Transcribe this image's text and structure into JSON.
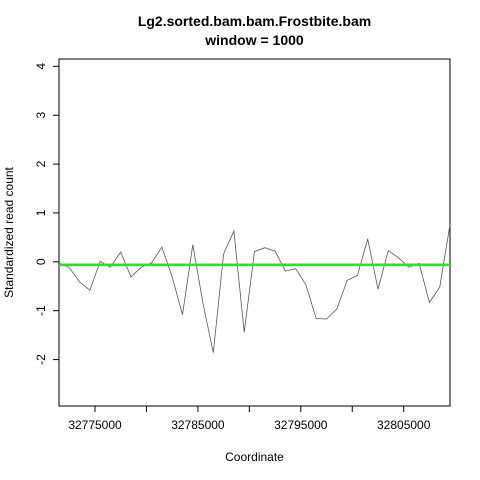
{
  "chart_data": {
    "type": "line",
    "title": "Lg2.sorted.bam.bam.Frostbite.bam",
    "subtitle": "window = 1000",
    "xlabel": "Coordinate",
    "ylabel": "Standardized read count",
    "xlim": [
      32771500,
      32809500
    ],
    "ylim": [
      -2.95,
      4.15
    ],
    "x_ticks": [
      32775000,
      32780000,
      32785000,
      32790000,
      32795000,
      32800000,
      32805000
    ],
    "x_tick_labels": [
      "32775000",
      "",
      "32785000",
      "",
      "32795000",
      "",
      "32805000"
    ],
    "y_ticks": [
      -2,
      -1,
      0,
      1,
      2,
      3,
      4
    ],
    "y_tick_labels": [
      "-2",
      "-1",
      "0",
      "1",
      "2",
      "3",
      "4"
    ],
    "grid": false,
    "series": [
      {
        "color": "#555555",
        "x": [
          32771500,
          32772500,
          32773500,
          32774500,
          32775500,
          32776500,
          32777500,
          32778500,
          32779500,
          32780500,
          32781500,
          32782500,
          32783500,
          32784500,
          32785500,
          32786500,
          32787500,
          32788500,
          32789500,
          32790500,
          32791500,
          32792500,
          32793500,
          32794500,
          32795500,
          32796500,
          32797500,
          32798500,
          32799500,
          32800500,
          32801500,
          32802500,
          32803500,
          32804500,
          32805500,
          32806500,
          32807500,
          32808500,
          32809500
        ],
        "y": [
          -0.02,
          -0.12,
          -0.41,
          -0.58,
          0.01,
          -0.11,
          0.2,
          -0.31,
          -0.11,
          -0.02,
          0.3,
          -0.31,
          -1.08,
          0.35,
          -0.86,
          -1.86,
          0.16,
          0.63,
          -1.44,
          0.21,
          0.29,
          0.22,
          -0.19,
          -0.14,
          -0.47,
          -1.16,
          -1.17,
          -0.97,
          -0.38,
          -0.28,
          0.47,
          -0.56,
          0.23,
          0.08,
          -0.11,
          -0.03,
          -0.83,
          -0.52,
          0.76
        ]
      },
      {
        "color": "#00ff00",
        "x": [
          32771500,
          32809500
        ],
        "y": [
          -0.06,
          -0.06
        ]
      }
    ]
  }
}
